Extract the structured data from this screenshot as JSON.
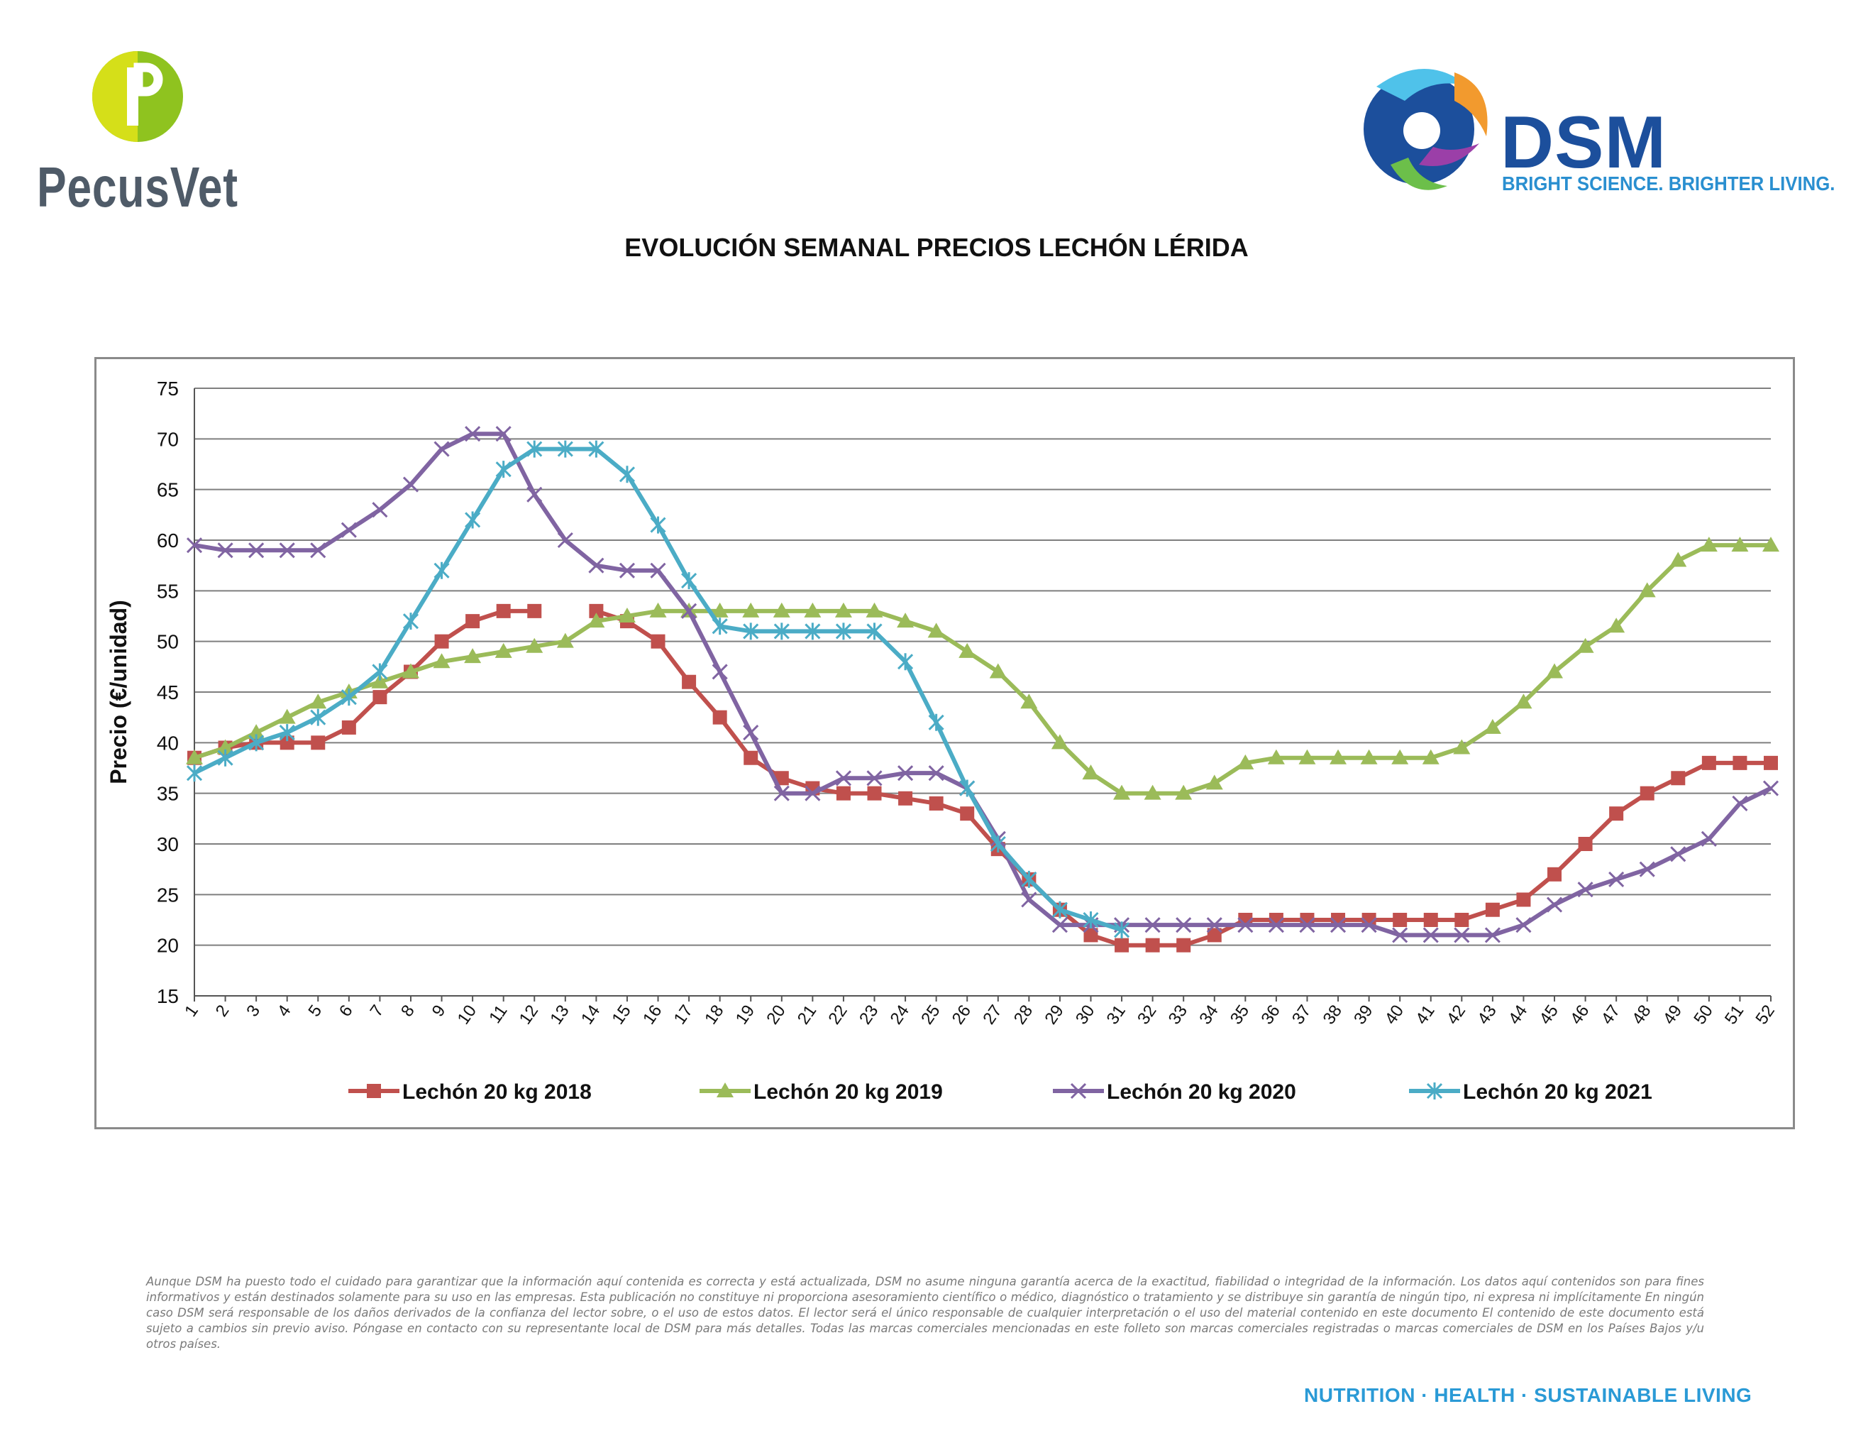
{
  "logos": {
    "left_name": "PecusVet",
    "right_name": "DSM",
    "right_tagline": "BRIGHT SCIENCE. BRIGHTER LIVING."
  },
  "colors": {
    "s2018": "#c0504d",
    "s2019": "#9bbb59",
    "s2020": "#8064a2",
    "s2021": "#4bacc6",
    "footer": "#2a9ad6"
  },
  "chart_data": {
    "type": "line",
    "title": "EVOLUCIÓN SEMANAL PRECIOS LECHÓN LÉRIDA",
    "xlabel": "",
    "ylabel": "Precio (€/unidad)",
    "ylim": [
      15,
      75
    ],
    "yticks": [
      15,
      20,
      25,
      30,
      35,
      40,
      45,
      50,
      55,
      60,
      65,
      70,
      75
    ],
    "x": [
      1,
      2,
      3,
      4,
      5,
      6,
      7,
      8,
      9,
      10,
      11,
      12,
      13,
      14,
      15,
      16,
      17,
      18,
      19,
      20,
      21,
      22,
      23,
      24,
      25,
      26,
      27,
      28,
      29,
      30,
      31,
      32,
      33,
      34,
      35,
      36,
      37,
      38,
      39,
      40,
      41,
      42,
      43,
      44,
      45,
      46,
      47,
      48,
      49,
      50,
      51,
      52
    ],
    "grid": "horizontal",
    "legend_position": "bottom",
    "series": [
      {
        "name": "Lechón 20 kg 2018",
        "marker": "square",
        "color": "#c0504d",
        "values": [
          38.5,
          39.5,
          40,
          40,
          40,
          41.5,
          44.5,
          47,
          50,
          52,
          53,
          53,
          null,
          53,
          52,
          50,
          46,
          42.5,
          38.5,
          36.5,
          35.5,
          35,
          35,
          34.5,
          34,
          33,
          29.5,
          26.5,
          23.5,
          21,
          20,
          20,
          20,
          21,
          22.5,
          22.5,
          22.5,
          22.5,
          22.5,
          22.5,
          22.5,
          22.5,
          23.5,
          24.5,
          27,
          30,
          33,
          35,
          36.5,
          38,
          38,
          38
        ]
      },
      {
        "name": "Lechón 20 kg 2019",
        "marker": "triangle",
        "color": "#9bbb59",
        "values": [
          38.5,
          39.5,
          41,
          42.5,
          44,
          45,
          46,
          47,
          48,
          48.5,
          49,
          49.5,
          50,
          52,
          52.5,
          53,
          53,
          53,
          53,
          53,
          53,
          53,
          53,
          52,
          51,
          49,
          47,
          44,
          40,
          37,
          35,
          35,
          35,
          36,
          38,
          38.5,
          38.5,
          38.5,
          38.5,
          38.5,
          38.5,
          39.5,
          41.5,
          44,
          47,
          49.5,
          51.5,
          55,
          58,
          59.5,
          59.5,
          59.5
        ]
      },
      {
        "name": "Lechón 20 kg 2020",
        "marker": "x",
        "color": "#8064a2",
        "values": [
          59.5,
          59,
          59,
          59,
          59,
          61,
          63,
          65.5,
          69,
          70.5,
          70.5,
          64.5,
          60,
          57.5,
          57,
          57,
          53,
          47,
          41,
          35,
          35,
          36.5,
          36.5,
          37,
          37,
          35.5,
          30.5,
          24.5,
          22,
          22,
          22,
          22,
          22,
          22,
          22,
          22,
          22,
          22,
          22,
          21,
          21,
          21,
          21,
          22,
          24,
          25.5,
          26.5,
          27.5,
          29,
          30.5,
          34,
          35.5
        ]
      },
      {
        "name": "Lechón 20 kg 2021",
        "marker": "star",
        "color": "#4bacc6",
        "values": [
          37,
          38.5,
          40,
          41,
          42.5,
          44.5,
          47,
          52,
          57,
          62,
          67,
          69,
          69,
          69,
          66.5,
          61.5,
          56,
          51.5,
          51,
          51,
          51,
          51,
          51,
          48,
          42,
          35.5,
          30,
          26.5,
          23.5,
          22.5,
          21.5,
          null,
          null,
          null,
          null,
          null,
          null,
          null,
          null,
          null,
          null,
          null,
          null,
          null,
          null,
          null,
          null,
          null,
          null,
          null,
          null,
          null
        ]
      }
    ]
  },
  "disclaimer": "Aunque DSM ha puesto todo el cuidado para garantizar que la información aquí contenida es correcta y está actualizada, DSM no asume ninguna garantía acerca de la exactitud, fiabilidad o integridad de la información. Los datos aquí contenidos son para fines informativos y están destinados solamente para su uso en las empresas. Esta publicación no constituye ni proporciona asesoramiento científico o médico, diagnóstico o tratamiento y se distribuye sin garantía de ningún tipo, ni expresa ni implícitamente En ningún caso DSM será responsable de los daños derivados de la confianza del lector sobre, o el uso de estos datos. El lector será el único responsable de cualquier interpretación o el uso del material contenido en este documento El contenido de este documento está sujeto a cambios sin previo aviso. Póngase en contacto con su representante local de DSM para más detalles. Todas las marcas comerciales mencionadas en este folleto son marcas comerciales registradas o marcas comerciales de DSM en los Países Bajos y/u otros países.",
  "footer": "NUTRITION · HEALTH · SUSTAINABLE LIVING"
}
